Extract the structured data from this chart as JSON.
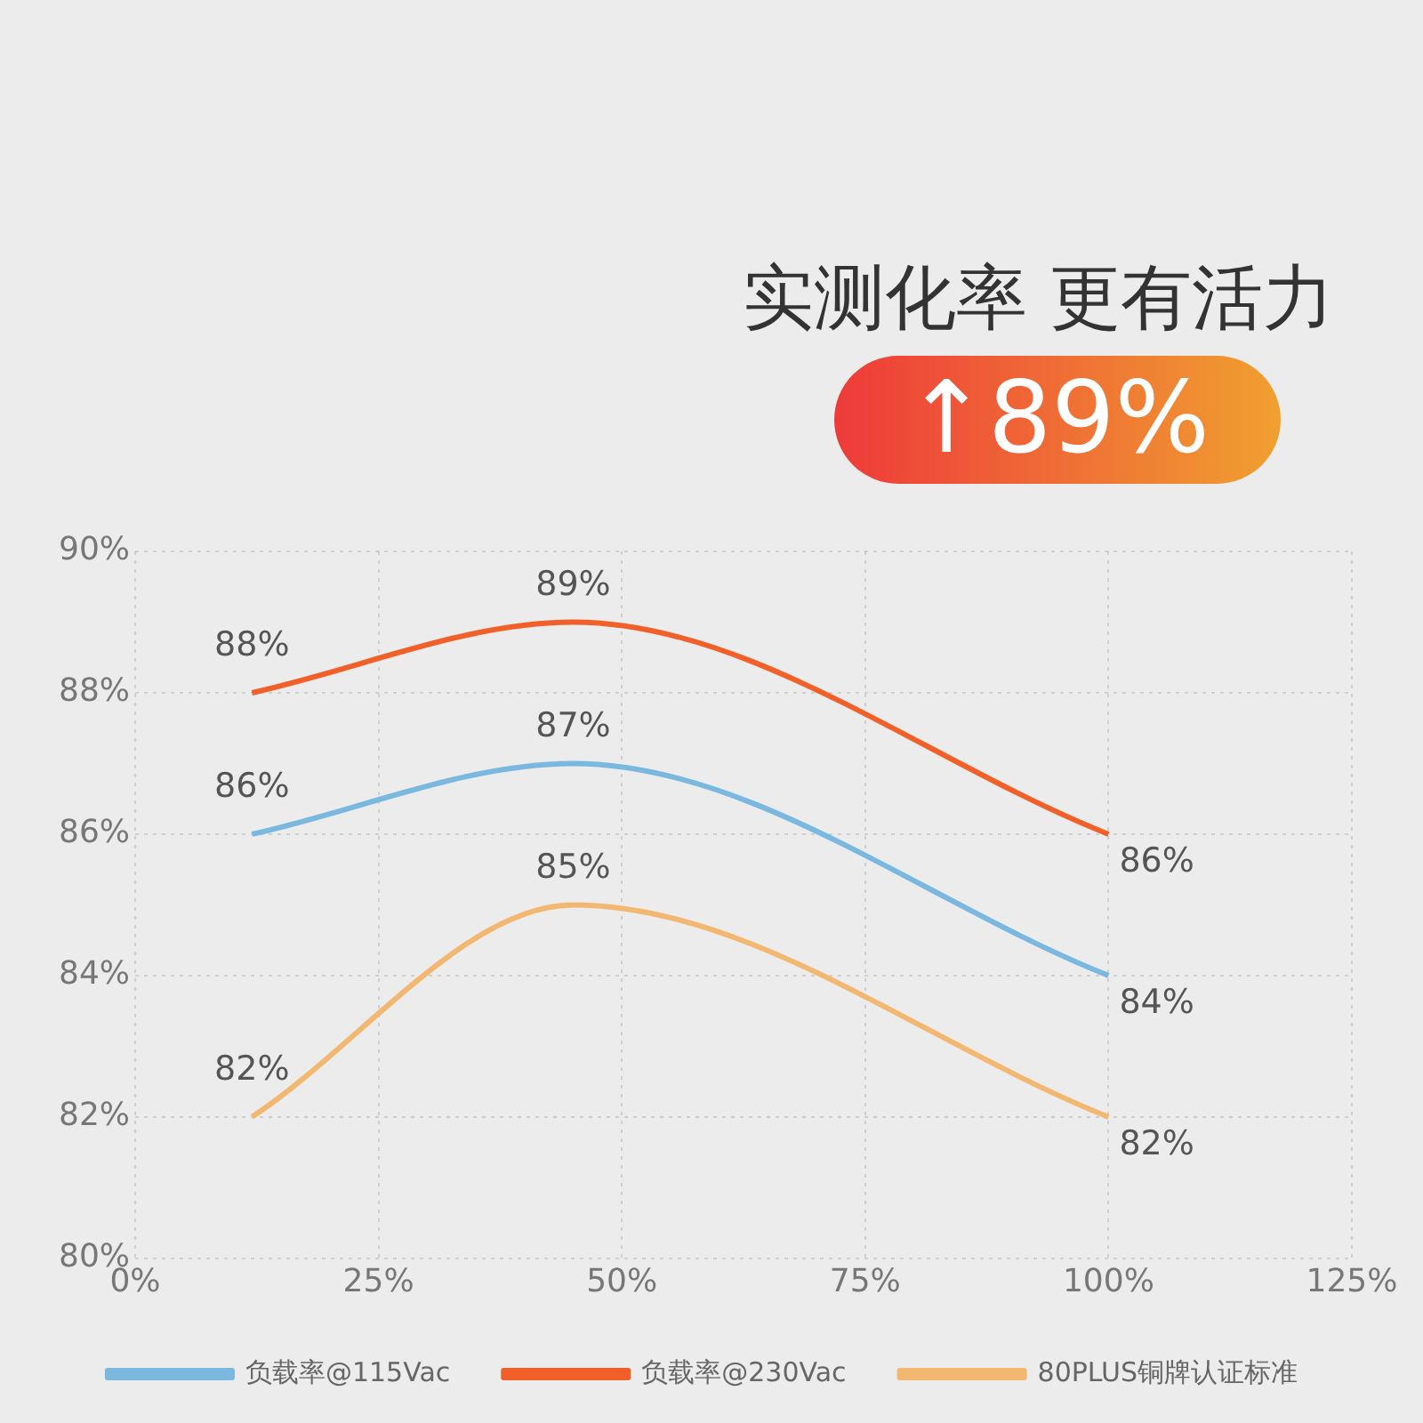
{
  "chart_data": {
    "type": "line",
    "title": "实测化率 更有活力",
    "subtitle": "↑89%",
    "xlim": [
      0,
      125
    ],
    "xticks": [
      {
        "value": 0,
        "label": "0%"
      },
      {
        "value": 25,
        "label": "25%"
      },
      {
        "value": 50,
        "label": "50%"
      },
      {
        "value": 75,
        "label": "75%"
      },
      {
        "value": 100,
        "label": "100%"
      },
      {
        "value": 125,
        "label": "125%"
      }
    ],
    "ylim": [
      80,
      90
    ],
    "yticks": [
      {
        "value": 80,
        "label": "80%"
      },
      {
        "value": 82,
        "label": "82%"
      },
      {
        "value": 84,
        "label": "84%"
      },
      {
        "value": 86,
        "label": "86%"
      },
      {
        "value": 88,
        "label": "88%"
      },
      {
        "value": 90,
        "label": "90%"
      }
    ],
    "grid": true,
    "legend": "bottom",
    "marker": "none",
    "line_style": "solid",
    "series": [
      {
        "name": "负载率@115Vac",
        "color": "#7ab8e0",
        "x": [
          12,
          45,
          100
        ],
        "values": [
          86,
          87,
          84
        ],
        "value_labels": [
          "86%",
          "87%",
          "84%"
        ]
      },
      {
        "name": "负载率@230Vac",
        "color": "#f2602a",
        "x": [
          12,
          45,
          100
        ],
        "values": [
          88,
          89,
          86
        ],
        "value_labels": [
          "88%",
          "89%",
          "86%"
        ]
      },
      {
        "name": "80PLUS铜牌认证标准",
        "color": "#f2b872",
        "x": [
          12,
          45,
          100
        ],
        "values": [
          82,
          85,
          82
        ],
        "value_labels": [
          "82%",
          "85%",
          "82%"
        ]
      }
    ]
  }
}
